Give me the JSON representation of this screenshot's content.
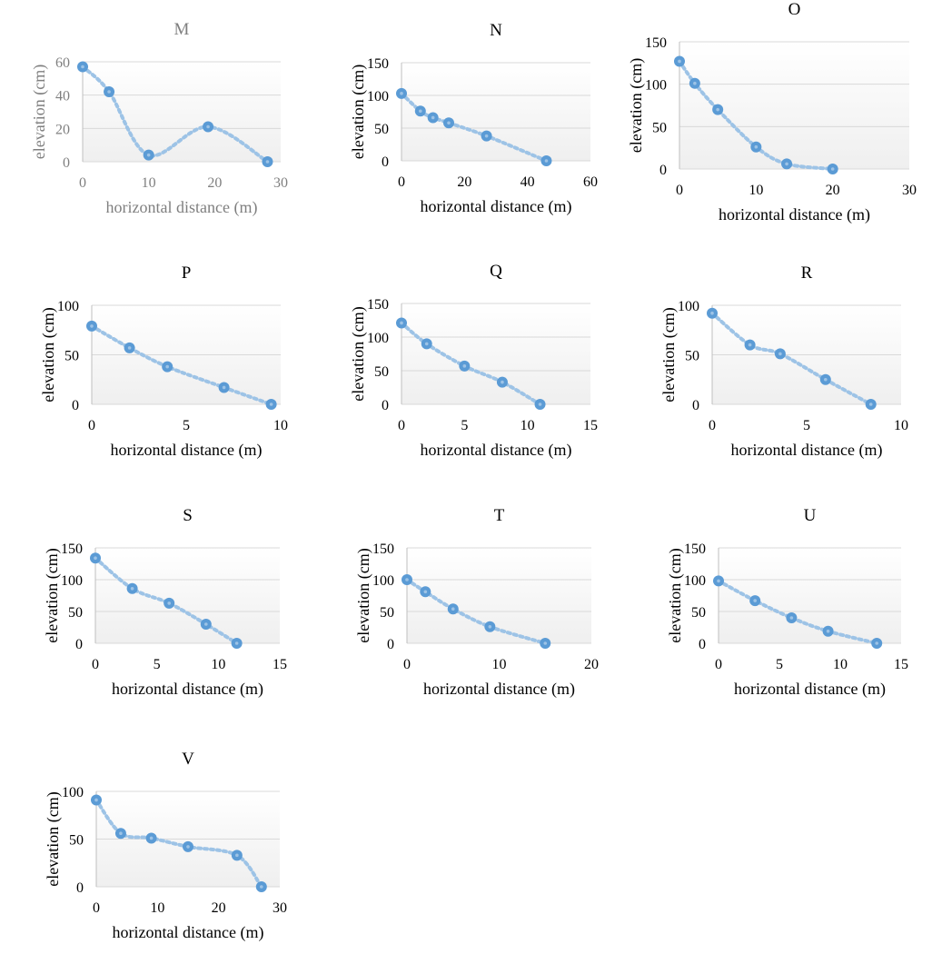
{
  "colors": {
    "marker": "#5b9bd5",
    "marker_center": "#9dc3e6",
    "line": "#9dc3e6",
    "grid": "#d9d9d9",
    "axis": "#bfbfbf",
    "text": "#000000",
    "text_muted": "#7f7f7f",
    "plot_fill_bottom": "#efefef"
  },
  "chart_data": [
    {
      "type": "line",
      "title": "M",
      "xlabel": "horizontal distance (m)",
      "ylabel": "elevation (cm)",
      "xlim": [
        0,
        30
      ],
      "ylim": [
        0,
        60
      ],
      "xticks": [
        0,
        10,
        20,
        30
      ],
      "yticks": [
        0,
        20,
        40,
        60
      ],
      "grid": true,
      "legend": "none",
      "muted": true,
      "x": [
        0,
        4,
        10,
        19,
        28
      ],
      "y": [
        57,
        42,
        4,
        21,
        0
      ]
    },
    {
      "type": "line",
      "title": "N",
      "xlabel": "horizontal distance (m)",
      "ylabel": "elevation (cm)",
      "xlim": [
        0,
        60
      ],
      "ylim": [
        0,
        150
      ],
      "xticks": [
        0,
        20,
        40,
        60
      ],
      "yticks": [
        0,
        50,
        100,
        150
      ],
      "grid": true,
      "legend": "none",
      "muted": false,
      "x": [
        0,
        6,
        10,
        15,
        27,
        46
      ],
      "y": [
        103,
        76,
        66,
        58,
        38,
        0
      ]
    },
    {
      "type": "line",
      "title": "O",
      "xlabel": "horizontal distance (m)",
      "ylabel": "elevation (cm)",
      "xlim": [
        0,
        30
      ],
      "ylim": [
        0,
        150
      ],
      "xticks": [
        0,
        10,
        20,
        30
      ],
      "yticks": [
        0,
        50,
        100,
        150
      ],
      "grid": true,
      "legend": "none",
      "muted": false,
      "x": [
        0,
        2,
        5,
        10,
        14,
        20
      ],
      "y": [
        127,
        101,
        70,
        26,
        6,
        0
      ]
    },
    {
      "type": "line",
      "title": "P",
      "xlabel": "horizontal distance (m)",
      "ylabel": "elevation (cm)",
      "xlim": [
        0,
        10
      ],
      "ylim": [
        0,
        100
      ],
      "xticks": [
        0,
        5,
        10
      ],
      "yticks": [
        0,
        50,
        100
      ],
      "grid": true,
      "legend": "none",
      "muted": false,
      "x": [
        0,
        2,
        4,
        7,
        9.5
      ],
      "y": [
        79,
        57,
        38,
        17,
        0
      ]
    },
    {
      "type": "line",
      "title": "Q",
      "xlabel": "horizontal distance (m)",
      "ylabel": "elevation (cm)",
      "xlim": [
        0,
        15
      ],
      "ylim": [
        0,
        150
      ],
      "xticks": [
        0,
        5,
        10,
        15
      ],
      "yticks": [
        0,
        50,
        100,
        150
      ],
      "grid": true,
      "legend": "none",
      "muted": false,
      "x": [
        0,
        2,
        5,
        8,
        11
      ],
      "y": [
        121,
        90,
        57,
        33,
        0
      ]
    },
    {
      "type": "line",
      "title": "R",
      "xlabel": "horizontal distance (m)",
      "ylabel": "elevation (cm)",
      "xlim": [
        0,
        10
      ],
      "ylim": [
        0,
        100
      ],
      "xticks": [
        0,
        5,
        10
      ],
      "yticks": [
        0,
        50,
        100
      ],
      "grid": true,
      "legend": "none",
      "muted": false,
      "x": [
        0,
        2,
        3.6,
        6,
        8.4
      ],
      "y": [
        92,
        60,
        51,
        25,
        0
      ]
    },
    {
      "type": "line",
      "title": "S",
      "xlabel": "horizontal distance (m)",
      "ylabel": "elevation (cm)",
      "xlim": [
        0,
        15
      ],
      "ylim": [
        0,
        150
      ],
      "xticks": [
        0,
        5,
        10,
        15
      ],
      "yticks": [
        0,
        50,
        100,
        150
      ],
      "grid": true,
      "legend": "none",
      "muted": false,
      "x": [
        0,
        3,
        6,
        9,
        11.5
      ],
      "y": [
        134,
        86,
        63,
        30,
        0
      ]
    },
    {
      "type": "line",
      "title": "T",
      "xlabel": "horizontal distance (m)",
      "ylabel": "elevation (cm)",
      "xlim": [
        0,
        20
      ],
      "ylim": [
        0,
        150
      ],
      "xticks": [
        0,
        10,
        20
      ],
      "yticks": [
        0,
        50,
        100,
        150
      ],
      "grid": true,
      "legend": "none",
      "muted": false,
      "x": [
        0,
        2,
        5,
        9,
        15
      ],
      "y": [
        100,
        81,
        54,
        26,
        0
      ]
    },
    {
      "type": "line",
      "title": "U",
      "xlabel": "horizontal distance (m)",
      "ylabel": "elevation (cm)",
      "xlim": [
        0,
        15
      ],
      "ylim": [
        0,
        150
      ],
      "xticks": [
        0,
        5,
        10,
        15
      ],
      "yticks": [
        0,
        50,
        100,
        150
      ],
      "grid": true,
      "legend": "none",
      "muted": false,
      "x": [
        0,
        3,
        6,
        9,
        13
      ],
      "y": [
        98,
        67,
        40,
        19,
        0
      ]
    },
    {
      "type": "line",
      "title": "V",
      "xlabel": "horizontal distance (m)",
      "ylabel": "elevation (cm)",
      "xlim": [
        0,
        30
      ],
      "ylim": [
        0,
        100
      ],
      "xticks": [
        0,
        10,
        20,
        30
      ],
      "yticks": [
        0,
        50,
        100
      ],
      "grid": true,
      "legend": "none",
      "muted": false,
      "x": [
        0,
        4,
        9,
        15,
        23,
        27
      ],
      "y": [
        91,
        56,
        51,
        42,
        33,
        0
      ]
    }
  ]
}
